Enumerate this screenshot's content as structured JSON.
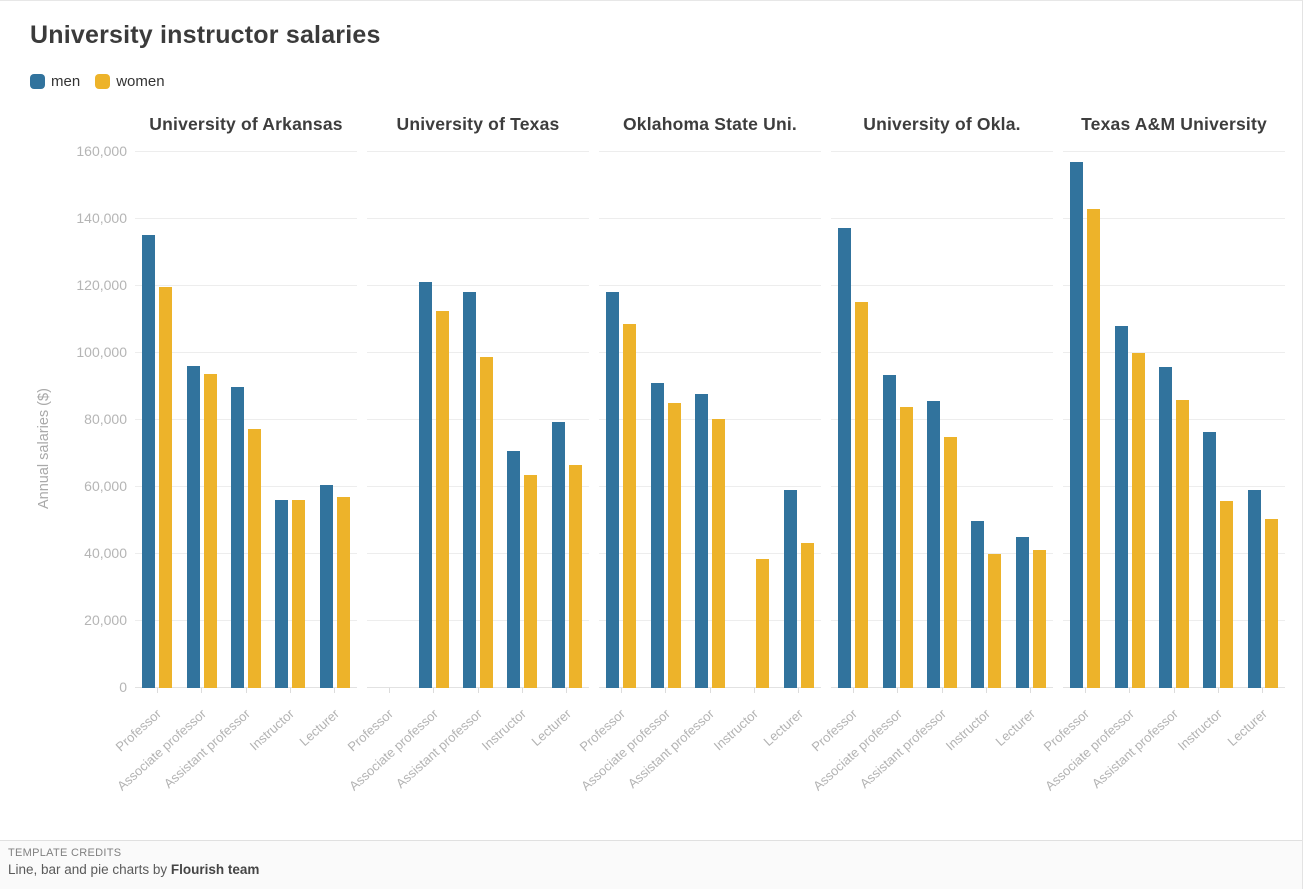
{
  "page": {
    "title": "University instructor salaries"
  },
  "legend": [
    {
      "label": "men",
      "color": "#31739d"
    },
    {
      "label": "women",
      "color": "#edb32a"
    }
  ],
  "footer": {
    "credits_heading": "TEMPLATE CREDITS",
    "credits_text": "Line, bar and pie charts by",
    "credits_author": "Flourish team"
  },
  "chart_data": {
    "type": "bar",
    "grouped": true,
    "title": "University instructor salaries",
    "ylabel": "Annual salaries ($)",
    "ylim": [
      0,
      160000
    ],
    "yticks": [
      0,
      20000,
      40000,
      60000,
      80000,
      100000,
      120000,
      140000,
      160000
    ],
    "grid": true,
    "legend_position": "top-left",
    "series_names": [
      "men",
      "women"
    ],
    "colors": {
      "men": "#31739d",
      "women": "#edb32a"
    },
    "categories": [
      "Professor",
      "Associate professor",
      "Assistant professor",
      "Instructor",
      "Lecturer"
    ],
    "facets": [
      {
        "title": "University of Arkansas",
        "series": [
          {
            "name": "men",
            "values": [
              135200,
              96200,
              89900,
              56100,
              60600
            ]
          },
          {
            "name": "women",
            "values": [
              119700,
              93700,
              77400,
              56100,
              57000
            ]
          }
        ]
      },
      {
        "title": "University of Texas",
        "series": [
          {
            "name": "men",
            "values": [
              null,
              121300,
              118300,
              70700,
              79400
            ]
          },
          {
            "name": "women",
            "values": [
              null,
              112400,
              98900,
              63500,
              66600
            ]
          }
        ]
      },
      {
        "title": "Oklahoma State Uni.",
        "series": [
          {
            "name": "men",
            "values": [
              118100,
              91000,
              87800,
              null,
              59200
            ]
          },
          {
            "name": "women",
            "values": [
              108600,
              85100,
              80300,
              38400,
              43400
            ]
          }
        ]
      },
      {
        "title": "University of Okla.",
        "series": [
          {
            "name": "men",
            "values": [
              137300,
              93500,
              85700,
              50000,
              45000
            ]
          },
          {
            "name": "women",
            "values": [
              115100,
              83900,
              74800,
              39900,
              41300
            ]
          }
        ]
      },
      {
        "title": "Texas A&M University",
        "series": [
          {
            "name": "men",
            "values": [
              157000,
              108000,
              95700,
              76500,
              59200
            ]
          },
          {
            "name": "women",
            "values": [
              143000,
              99900,
              86000,
              55900,
              50400
            ]
          }
        ]
      }
    ]
  }
}
